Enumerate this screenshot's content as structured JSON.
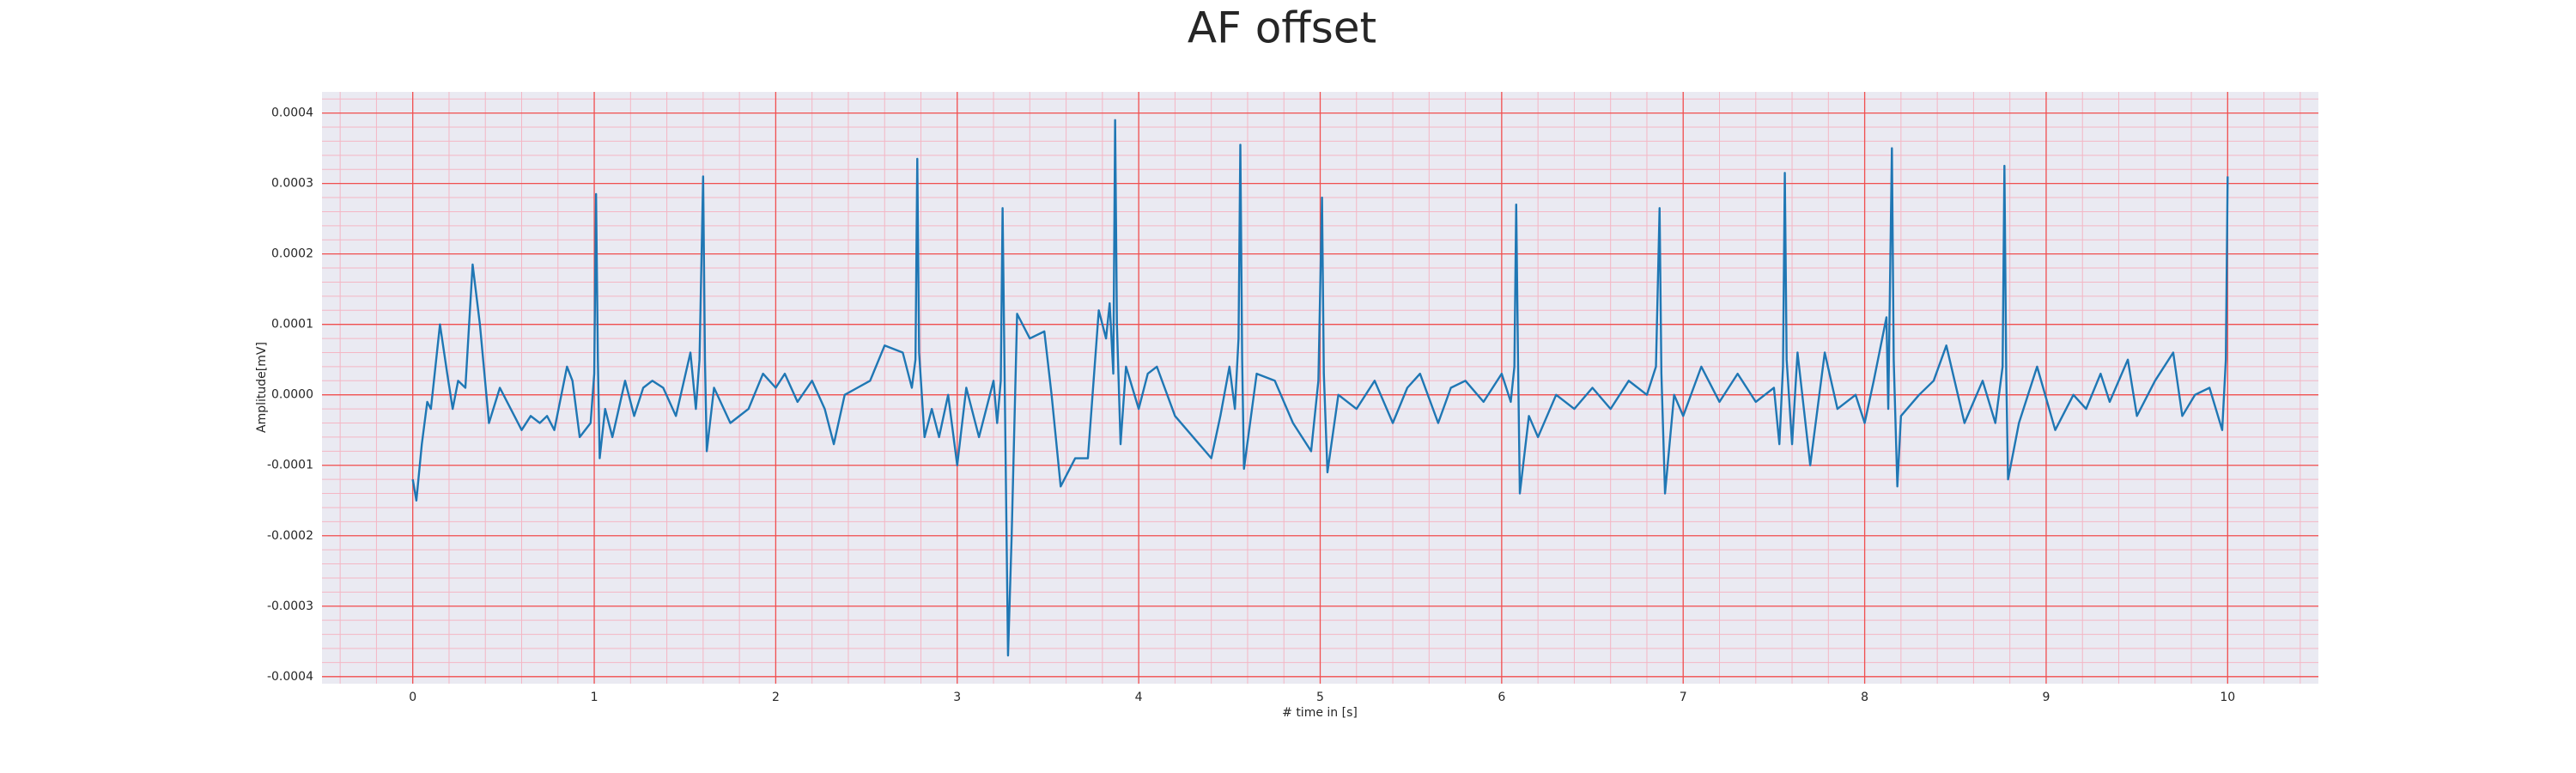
{
  "chart_data": {
    "type": "line",
    "title": "AF offset",
    "xlabel": "# time in [s]",
    "ylabel": "Amplitude[mV]",
    "color": "#1f77b4",
    "grid": true,
    "xlim": [
      -0.5,
      10.5
    ],
    "ylim": [
      -0.00041,
      0.00043
    ],
    "xticks": [
      0,
      1,
      2,
      3,
      4,
      5,
      6,
      7,
      8,
      9,
      10
    ],
    "yticks": [
      -0.0004,
      -0.0003,
      -0.0002,
      -0.0001,
      {
        "value": 0,
        "label": "0.0000"
      },
      0.0001,
      0.0002,
      0.0003,
      0.0004
    ],
    "x": [
      0,
      0.02,
      0.05,
      0.08,
      0.1,
      0.15,
      0.19,
      0.22,
      0.25,
      0.29,
      0.33,
      0.37,
      0.42,
      0.48,
      0.52,
      0.56,
      0.6,
      0.65,
      0.7,
      0.74,
      0.78,
      0.85,
      0.88,
      0.92,
      0.98,
      1.0,
      1.01,
      1.02,
      1.03,
      1.06,
      1.1,
      1.17,
      1.22,
      1.27,
      1.32,
      1.38,
      1.45,
      1.53,
      1.56,
      1.58,
      1.6,
      1.61,
      1.62,
      1.66,
      1.75,
      1.85,
      1.93,
      2.0,
      2.05,
      2.12,
      2.2,
      2.27,
      2.32,
      2.38,
      2.45,
      2.52,
      2.6,
      2.7,
      2.75,
      2.77,
      2.78,
      2.79,
      2.82,
      2.86,
      2.9,
      2.95,
      3.0,
      3.05,
      3.12,
      3.2,
      3.22,
      3.24,
      3.25,
      3.26,
      3.28,
      3.3,
      3.33,
      3.4,
      3.48,
      3.52,
      3.57,
      3.65,
      3.72,
      3.78,
      3.82,
      3.84,
      3.86,
      3.87,
      3.88,
      3.9,
      3.93,
      4.0,
      4.05,
      4.1,
      4.2,
      4.3,
      4.4,
      4.45,
      4.5,
      4.53,
      4.55,
      4.56,
      4.57,
      4.58,
      4.65,
      4.75,
      4.85,
      4.95,
      4.99,
      5.01,
      5.02,
      5.04,
      5.1,
      5.2,
      5.3,
      5.4,
      5.48,
      5.55,
      5.65,
      5.72,
      5.8,
      5.9,
      6.0,
      6.05,
      6.07,
      6.08,
      6.09,
      6.1,
      6.15,
      6.2,
      6.3,
      6.4,
      6.5,
      6.6,
      6.7,
      6.8,
      6.85,
      6.87,
      6.88,
      6.9,
      6.95,
      7.0,
      7.1,
      7.2,
      7.3,
      7.4,
      7.5,
      7.53,
      7.55,
      7.56,
      7.57,
      7.6,
      7.63,
      7.7,
      7.78,
      7.85,
      7.95,
      8.0,
      8.05,
      8.12,
      8.13,
      8.15,
      8.16,
      8.18,
      8.2,
      8.3,
      8.38,
      8.45,
      8.55,
      8.65,
      8.72,
      8.76,
      8.77,
      8.78,
      8.79,
      8.85,
      8.95,
      9.05,
      9.15,
      9.22,
      9.3,
      9.35,
      9.45,
      9.5,
      9.6,
      9.7,
      9.75,
      9.82,
      9.9,
      9.97,
      9.99,
      10.0
    ],
    "values": [
      -0.00012,
      -0.00015,
      -7e-05,
      -1e-05,
      -2e-05,
      0.0001,
      3e-05,
      -2e-05,
      2e-05,
      1e-05,
      0.000185,
      0.0001,
      -4e-05,
      1e-05,
      -1e-05,
      -3e-05,
      -5e-05,
      -3e-05,
      -4e-05,
      -3e-05,
      -5e-05,
      4e-05,
      2e-05,
      -6e-05,
      -4e-05,
      3e-05,
      0.000285,
      5e-05,
      -9e-05,
      -2e-05,
      -6e-05,
      2e-05,
      -3e-05,
      1e-05,
      2e-05,
      1e-05,
      -3e-05,
      6e-05,
      -2e-05,
      5e-05,
      0.00031,
      5e-05,
      -8e-05,
      1e-05,
      -4e-05,
      -2e-05,
      3e-05,
      1e-05,
      3e-05,
      -1e-05,
      2e-05,
      -2e-05,
      -7e-05,
      0,
      1e-05,
      2e-05,
      7e-05,
      6e-05,
      1e-05,
      5e-05,
      0.000335,
      6e-05,
      -6e-05,
      -2e-05,
      -6e-05,
      0,
      -0.0001,
      1e-05,
      -6e-05,
      2e-05,
      -4e-05,
      2e-05,
      0.000265,
      5e-05,
      -0.00037,
      -0.0002,
      0.000115,
      8e-05,
      9e-05,
      0,
      -0.00013,
      -9e-05,
      -9e-05,
      0.00012,
      8e-05,
      0.00013,
      3e-05,
      0.00039,
      0.0001,
      -7e-05,
      4e-05,
      -2e-05,
      3e-05,
      4e-05,
      -3e-05,
      -6e-05,
      -9e-05,
      -3e-05,
      4e-05,
      -2e-05,
      8e-05,
      0.000355,
      5e-05,
      -0.000105,
      3e-05,
      2e-05,
      -4e-05,
      -8e-05,
      2e-05,
      0.00028,
      3e-05,
      -0.00011,
      0,
      -2e-05,
      2e-05,
      -4e-05,
      1e-05,
      3e-05,
      -4e-05,
      1e-05,
      2e-05,
      -1e-05,
      3e-05,
      -1e-05,
      4e-05,
      0.00027,
      5e-05,
      -0.00014,
      -3e-05,
      -6e-05,
      0,
      -2e-05,
      1e-05,
      -2e-05,
      2e-05,
      0,
      4e-05,
      0.000265,
      3e-05,
      -0.00014,
      0,
      -3e-05,
      4e-05,
      -1e-05,
      3e-05,
      -1e-05,
      1e-05,
      -7e-05,
      4e-05,
      0.000315,
      5e-05,
      -7e-05,
      6e-05,
      -0.0001,
      6e-05,
      -2e-05,
      0,
      -4e-05,
      2e-05,
      0.00011,
      -2e-05,
      0.00035,
      5e-05,
      -0.00013,
      -3e-05,
      0,
      2e-05,
      7e-05,
      -4e-05,
      2e-05,
      -4e-05,
      4e-05,
      0.000325,
      3e-05,
      -0.00012,
      -4e-05,
      4e-05,
      -5e-05,
      0,
      -2e-05,
      3e-05,
      -1e-05,
      5e-05,
      -3e-05,
      2e-05,
      6e-05,
      -3e-05,
      0,
      1e-05,
      -5e-05,
      5e-05,
      0.00031
    ]
  }
}
